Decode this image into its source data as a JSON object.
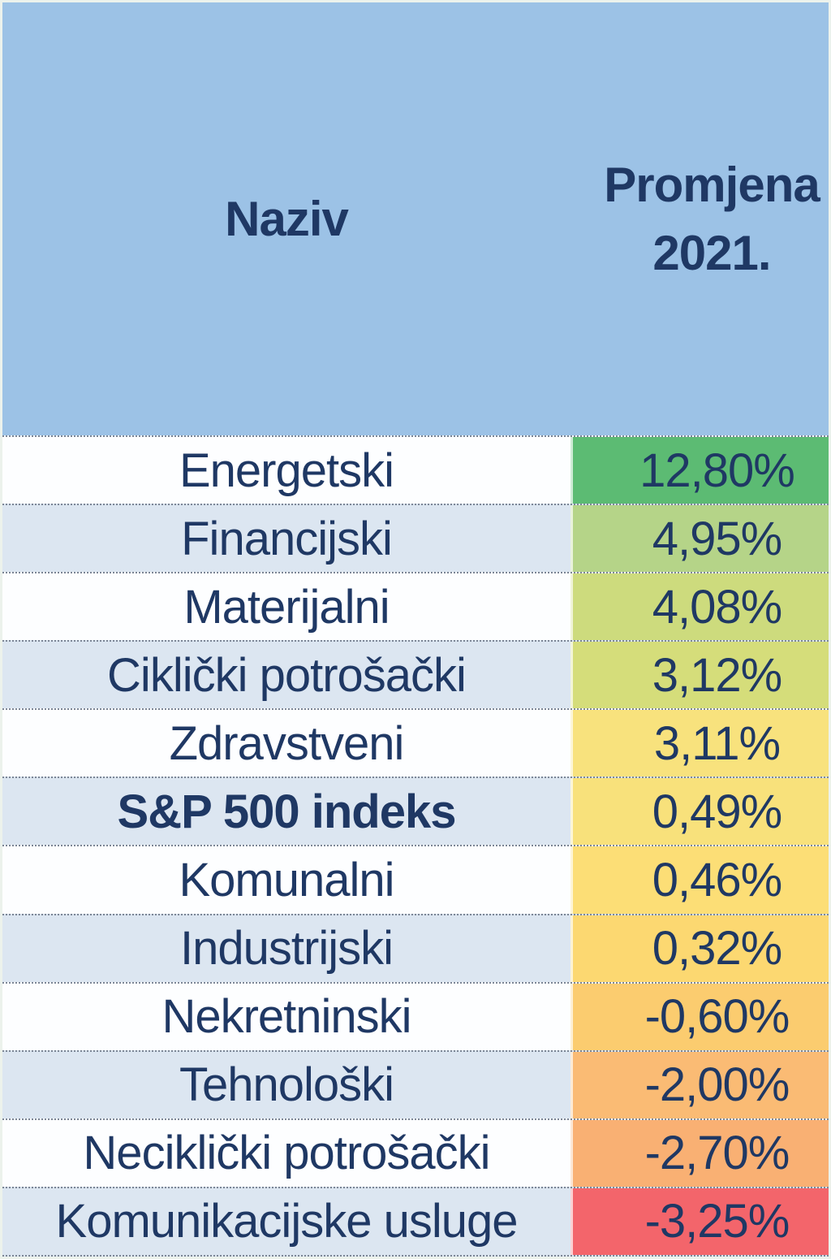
{
  "table": {
    "header": {
      "name_label": "Naziv",
      "change_label": "Promjena\n2021."
    },
    "rows": [
      {
        "name": "Energetski",
        "value": "12,80%",
        "value_bg": "#5CBB73",
        "bold": false
      },
      {
        "name": "Financijski",
        "value": "4,95%",
        "value_bg": "#B5D488",
        "bold": false
      },
      {
        "name": "Materijalni",
        "value": "4,08%",
        "value_bg": "#CDDB7D",
        "bold": false
      },
      {
        "name": "Ciklički potrošački",
        "value": "3,12%",
        "value_bg": "#D5DD7A",
        "bold": false
      },
      {
        "name": "Zdravstveni",
        "value": "3,11%",
        "value_bg": "#F8E27D",
        "bold": false
      },
      {
        "name": "S&P 500 indeks",
        "value": "0,49%",
        "value_bg": "#F8E17B",
        "bold": true
      },
      {
        "name": "Komunalni",
        "value": "0,46%",
        "value_bg": "#FCDE76",
        "bold": false
      },
      {
        "name": "Industrijski",
        "value": "0,32%",
        "value_bg": "#FCD871",
        "bold": false
      },
      {
        "name": "Nekretninski",
        "value": "-0,60%",
        "value_bg": "#FBCC6F",
        "bold": false
      },
      {
        "name": "Tehnološki",
        "value": "-2,00%",
        "value_bg": "#FABB74",
        "bold": false
      },
      {
        "name": "Neciklički potrošački",
        "value": "-2,70%",
        "value_bg": "#F9B073",
        "bold": false
      },
      {
        "name": "Komunikacijske usluge",
        "value": "-3,25%",
        "value_bg": "#F3656B",
        "bold": false
      }
    ]
  },
  "colors": {
    "header_bg": "#9CC2E6",
    "row_base": "#FDFEFF",
    "row_alt": "#DCE6F1",
    "text": "#1F3864",
    "scale_max_green": "#5CBB73",
    "scale_mid_yellow": "#F8E17B",
    "scale_min_red": "#F3656B"
  },
  "chart_data": {
    "type": "table",
    "title": "",
    "columns": [
      "Naziv",
      "Promjena 2021."
    ],
    "categories": [
      "Energetski",
      "Financijski",
      "Materijalni",
      "Ciklički potrošački",
      "Zdravstveni",
      "S&P 500 indeks",
      "Komunalni",
      "Industrijski",
      "Nekretninski",
      "Tehnološki",
      "Neciklički potrošački",
      "Komunikacijske usluge"
    ],
    "values": [
      12.8,
      4.95,
      4.08,
      3.12,
      3.11,
      0.49,
      0.46,
      0.32,
      -0.6,
      -2.0,
      -2.7,
      -3.25
    ],
    "value_unit": "%",
    "layout_hints": "two-column table, value column color-scaled green→yellow→red by performance, alternating white/light-blue row stripes"
  }
}
